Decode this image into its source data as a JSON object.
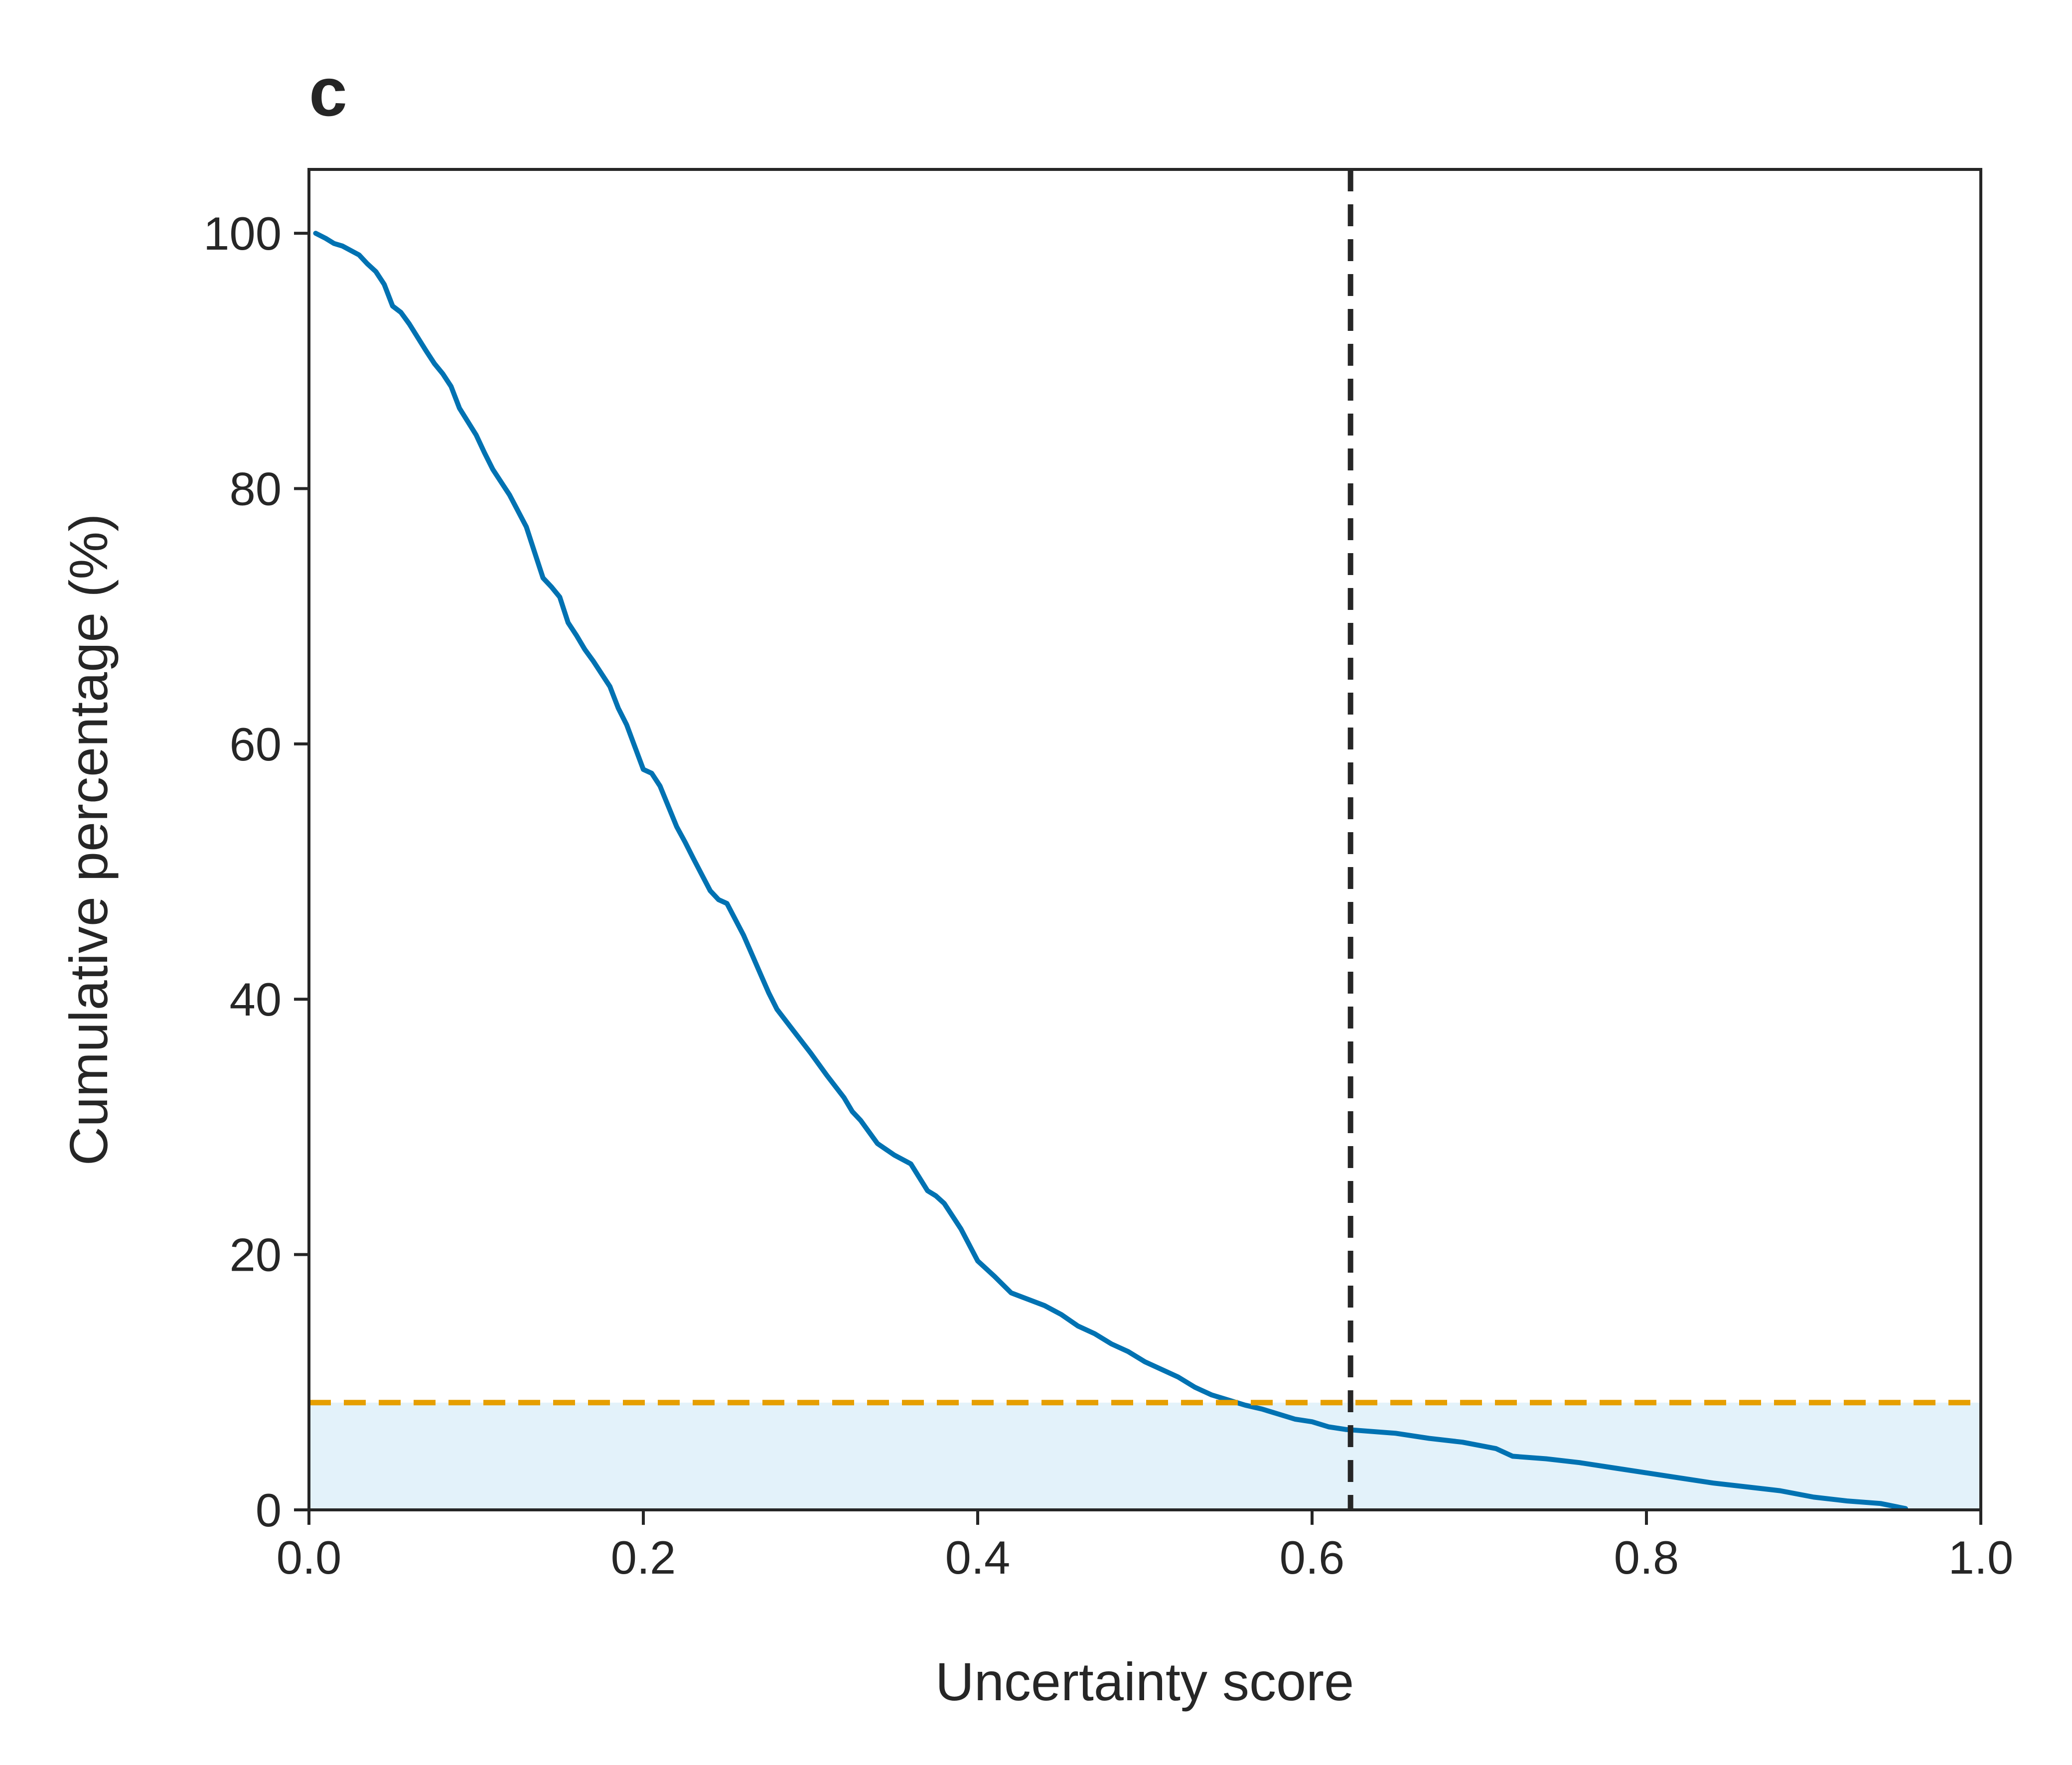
{
  "panel_label": "c",
  "chart_data": {
    "type": "line",
    "title": "",
    "xlabel": "Uncertainty score",
    "ylabel": "Cumulative percentage (%)",
    "xlim": [
      0.0,
      1.0
    ],
    "ylim": [
      0,
      105
    ],
    "x_ticks": [
      {
        "value": 0.0,
        "label": "0.0"
      },
      {
        "value": 0.2,
        "label": "0.2"
      },
      {
        "value": 0.4,
        "label": "0.4"
      },
      {
        "value": 0.6,
        "label": "0.6"
      },
      {
        "value": 0.8,
        "label": "0.8"
      },
      {
        "value": 1.0,
        "label": "1.0"
      }
    ],
    "y_ticks": [
      {
        "value": 0,
        "label": "0"
      },
      {
        "value": 20,
        "label": "20"
      },
      {
        "value": 40,
        "label": "40"
      },
      {
        "value": 60,
        "label": "60"
      },
      {
        "value": 80,
        "label": "80"
      },
      {
        "value": 100,
        "label": "100"
      }
    ],
    "grid": false,
    "legend": "none",
    "series": [
      {
        "color": "#0072b2",
        "x": [
          0.004,
          0.01,
          0.015,
          0.02,
          0.03,
          0.035,
          0.04,
          0.045,
          0.05,
          0.055,
          0.06,
          0.07,
          0.075,
          0.08,
          0.085,
          0.09,
          0.1,
          0.105,
          0.11,
          0.12,
          0.13,
          0.135,
          0.14,
          0.145,
          0.15,
          0.155,
          0.16,
          0.165,
          0.17,
          0.18,
          0.185,
          0.19,
          0.2,
          0.205,
          0.21,
          0.22,
          0.225,
          0.23,
          0.24,
          0.245,
          0.25,
          0.26,
          0.265,
          0.27,
          0.275,
          0.28,
          0.29,
          0.3,
          0.31,
          0.32,
          0.325,
          0.33,
          0.34,
          0.35,
          0.36,
          0.37,
          0.375,
          0.38,
          0.39,
          0.4,
          0.41,
          0.42,
          0.43,
          0.44,
          0.45,
          0.46,
          0.47,
          0.48,
          0.49,
          0.5,
          0.51,
          0.52,
          0.53,
          0.54,
          0.55,
          0.56,
          0.57,
          0.58,
          0.59,
          0.6,
          0.61,
          0.62,
          0.63,
          0.65,
          0.67,
          0.69,
          0.71,
          0.72,
          0.74,
          0.76,
          0.78,
          0.8,
          0.82,
          0.84,
          0.86,
          0.88,
          0.9,
          0.92,
          0.94,
          0.955
        ],
        "y": [
          100,
          99.6,
          99.2,
          99.0,
          98.3,
          97.6,
          97.0,
          96.0,
          94.3,
          93.8,
          92.9,
          90.8,
          89.8,
          89.0,
          88.0,
          86.3,
          84.2,
          82.8,
          81.5,
          79.5,
          77.0,
          75.0,
          73.0,
          72.3,
          71.5,
          69.5,
          68.5,
          67.4,
          66.5,
          64.5,
          62.8,
          61.5,
          58.0,
          57.7,
          56.7,
          53.5,
          52.3,
          51.0,
          48.5,
          47.8,
          47.5,
          45.0,
          43.5,
          42.0,
          40.5,
          39.2,
          37.5,
          35.8,
          34.0,
          32.3,
          31.2,
          30.5,
          28.7,
          27.8,
          27.1,
          25.0,
          24.6,
          24.0,
          22.0,
          19.5,
          18.3,
          17.0,
          16.5,
          16.0,
          15.3,
          14.4,
          13.8,
          13.0,
          12.4,
          11.6,
          11.0,
          10.4,
          9.6,
          9.0,
          8.6,
          8.2,
          7.9,
          7.5,
          7.1,
          6.9,
          6.5,
          6.3,
          6.2,
          6.0,
          5.6,
          5.3,
          4.8,
          4.2,
          4.0,
          3.7,
          3.3,
          2.9,
          2.5,
          2.1,
          1.8,
          1.5,
          1.0,
          0.7,
          0.5,
          0.1
        ]
      }
    ],
    "reference_lines": [
      {
        "orientation": "vertical",
        "value": 0.623,
        "color": "#262626",
        "style": "dashed"
      },
      {
        "orientation": "horizontal",
        "value": 8.4,
        "color": "#e69f00",
        "style": "dashed"
      }
    ],
    "shaded_band": {
      "from": 0,
      "to": 8.4,
      "color": "#e3f2fa"
    }
  }
}
